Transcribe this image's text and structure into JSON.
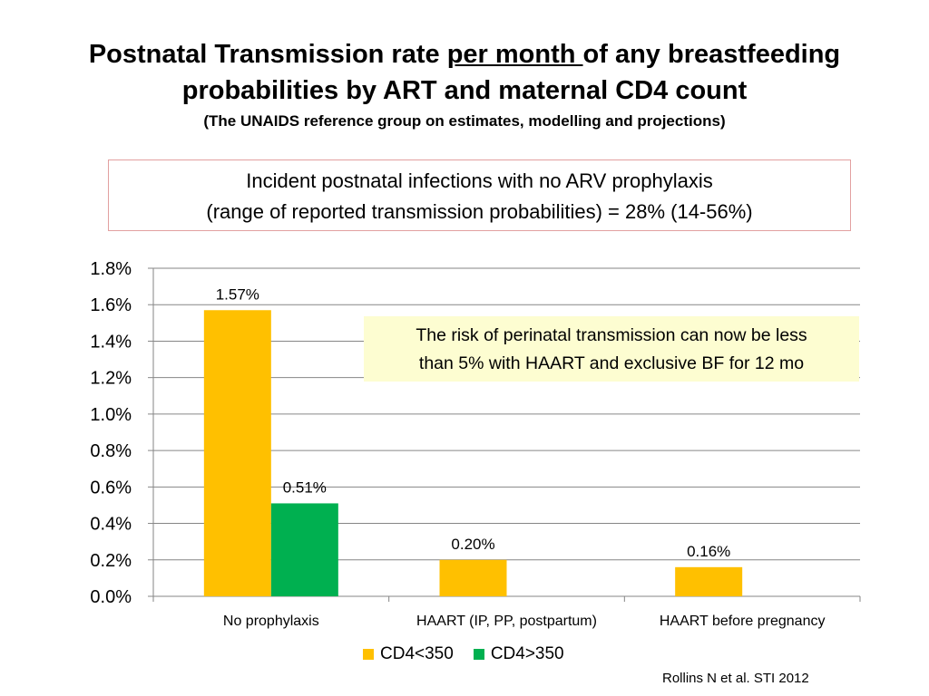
{
  "title": {
    "line1_pre": "Postnatal Transmission rate ",
    "line1_underlined": "per month ",
    "line1_post": "of any breastfeeding",
    "line2": "probabilities by ART and maternal CD4 count",
    "subtitle": "(The UNAIDS reference group on estimates, modelling and projections)"
  },
  "info_box": {
    "line1": "Incident postnatal infections with no ARV prophylaxis",
    "line2": "(range of reported transmission probabilities) = 28% (14-56%)"
  },
  "callout": {
    "line1": "The risk of perinatal transmission can now be less",
    "line2": "than 5% with HAART and exclusive BF for 12 mo"
  },
  "citation": "Rollins N et al. STI 2012",
  "chart_data": {
    "type": "bar",
    "categories": [
      "No prophylaxis",
      "HAART (IP, PP, postpartum)",
      "HAART before pregnancy"
    ],
    "series": [
      {
        "name": "CD4<350",
        "color": "#FFC000",
        "values": [
          1.57,
          0.2,
          0.16
        ],
        "labels": [
          "1.57%",
          "0.20%",
          "0.16%"
        ]
      },
      {
        "name": "CD4>350",
        "color": "#00B050",
        "values": [
          0.51,
          null,
          null
        ],
        "labels": [
          "0.51%",
          "",
          ""
        ]
      }
    ],
    "ylim": [
      0,
      1.8
    ],
    "yticks": [
      0.0,
      0.2,
      0.4,
      0.6,
      0.8,
      1.0,
      1.2,
      1.4,
      1.6,
      1.8
    ],
    "ytick_labels": [
      "0.0%",
      "0.2%",
      "0.4%",
      "0.6%",
      "0.8%",
      "1.0%",
      "1.2%",
      "1.4%",
      "1.6%",
      "1.8%"
    ],
    "grid": true,
    "legend": "bottom"
  }
}
